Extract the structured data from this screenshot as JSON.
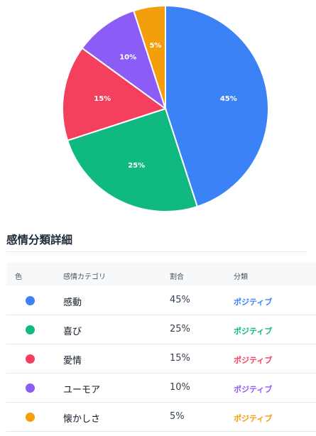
{
  "chart_data": {
    "type": "pie",
    "categories": [
      "感動",
      "喜び",
      "愛情",
      "ユーモア",
      "懐かしさ"
    ],
    "values": [
      45,
      25,
      15,
      10,
      5
    ],
    "labels": [
      "45%",
      "25%",
      "15%",
      "10%",
      "5%"
    ],
    "colors": [
      "#3b82f6",
      "#10b981",
      "#f43f5e",
      "#8b5cf6",
      "#f59e0b"
    ]
  },
  "section": {
    "title": "感情分類詳細"
  },
  "table": {
    "headers": [
      "色",
      "感情カテゴリ",
      "割合",
      "分類"
    ],
    "rows": [
      {
        "category": "感動",
        "percent": "45%",
        "class": "ポジティブ",
        "color": "#3b82f6"
      },
      {
        "category": "喜び",
        "percent": "25%",
        "class": "ポジティブ",
        "color": "#10b981"
      },
      {
        "category": "愛情",
        "percent": "15%",
        "class": "ポジティブ",
        "color": "#f43f5e"
      },
      {
        "category": "ユーモア",
        "percent": "10%",
        "class": "ポジティブ",
        "color": "#8b5cf6"
      },
      {
        "category": "懐かしさ",
        "percent": "5%",
        "class": "ポジティブ",
        "color": "#f59e0b"
      }
    ]
  }
}
